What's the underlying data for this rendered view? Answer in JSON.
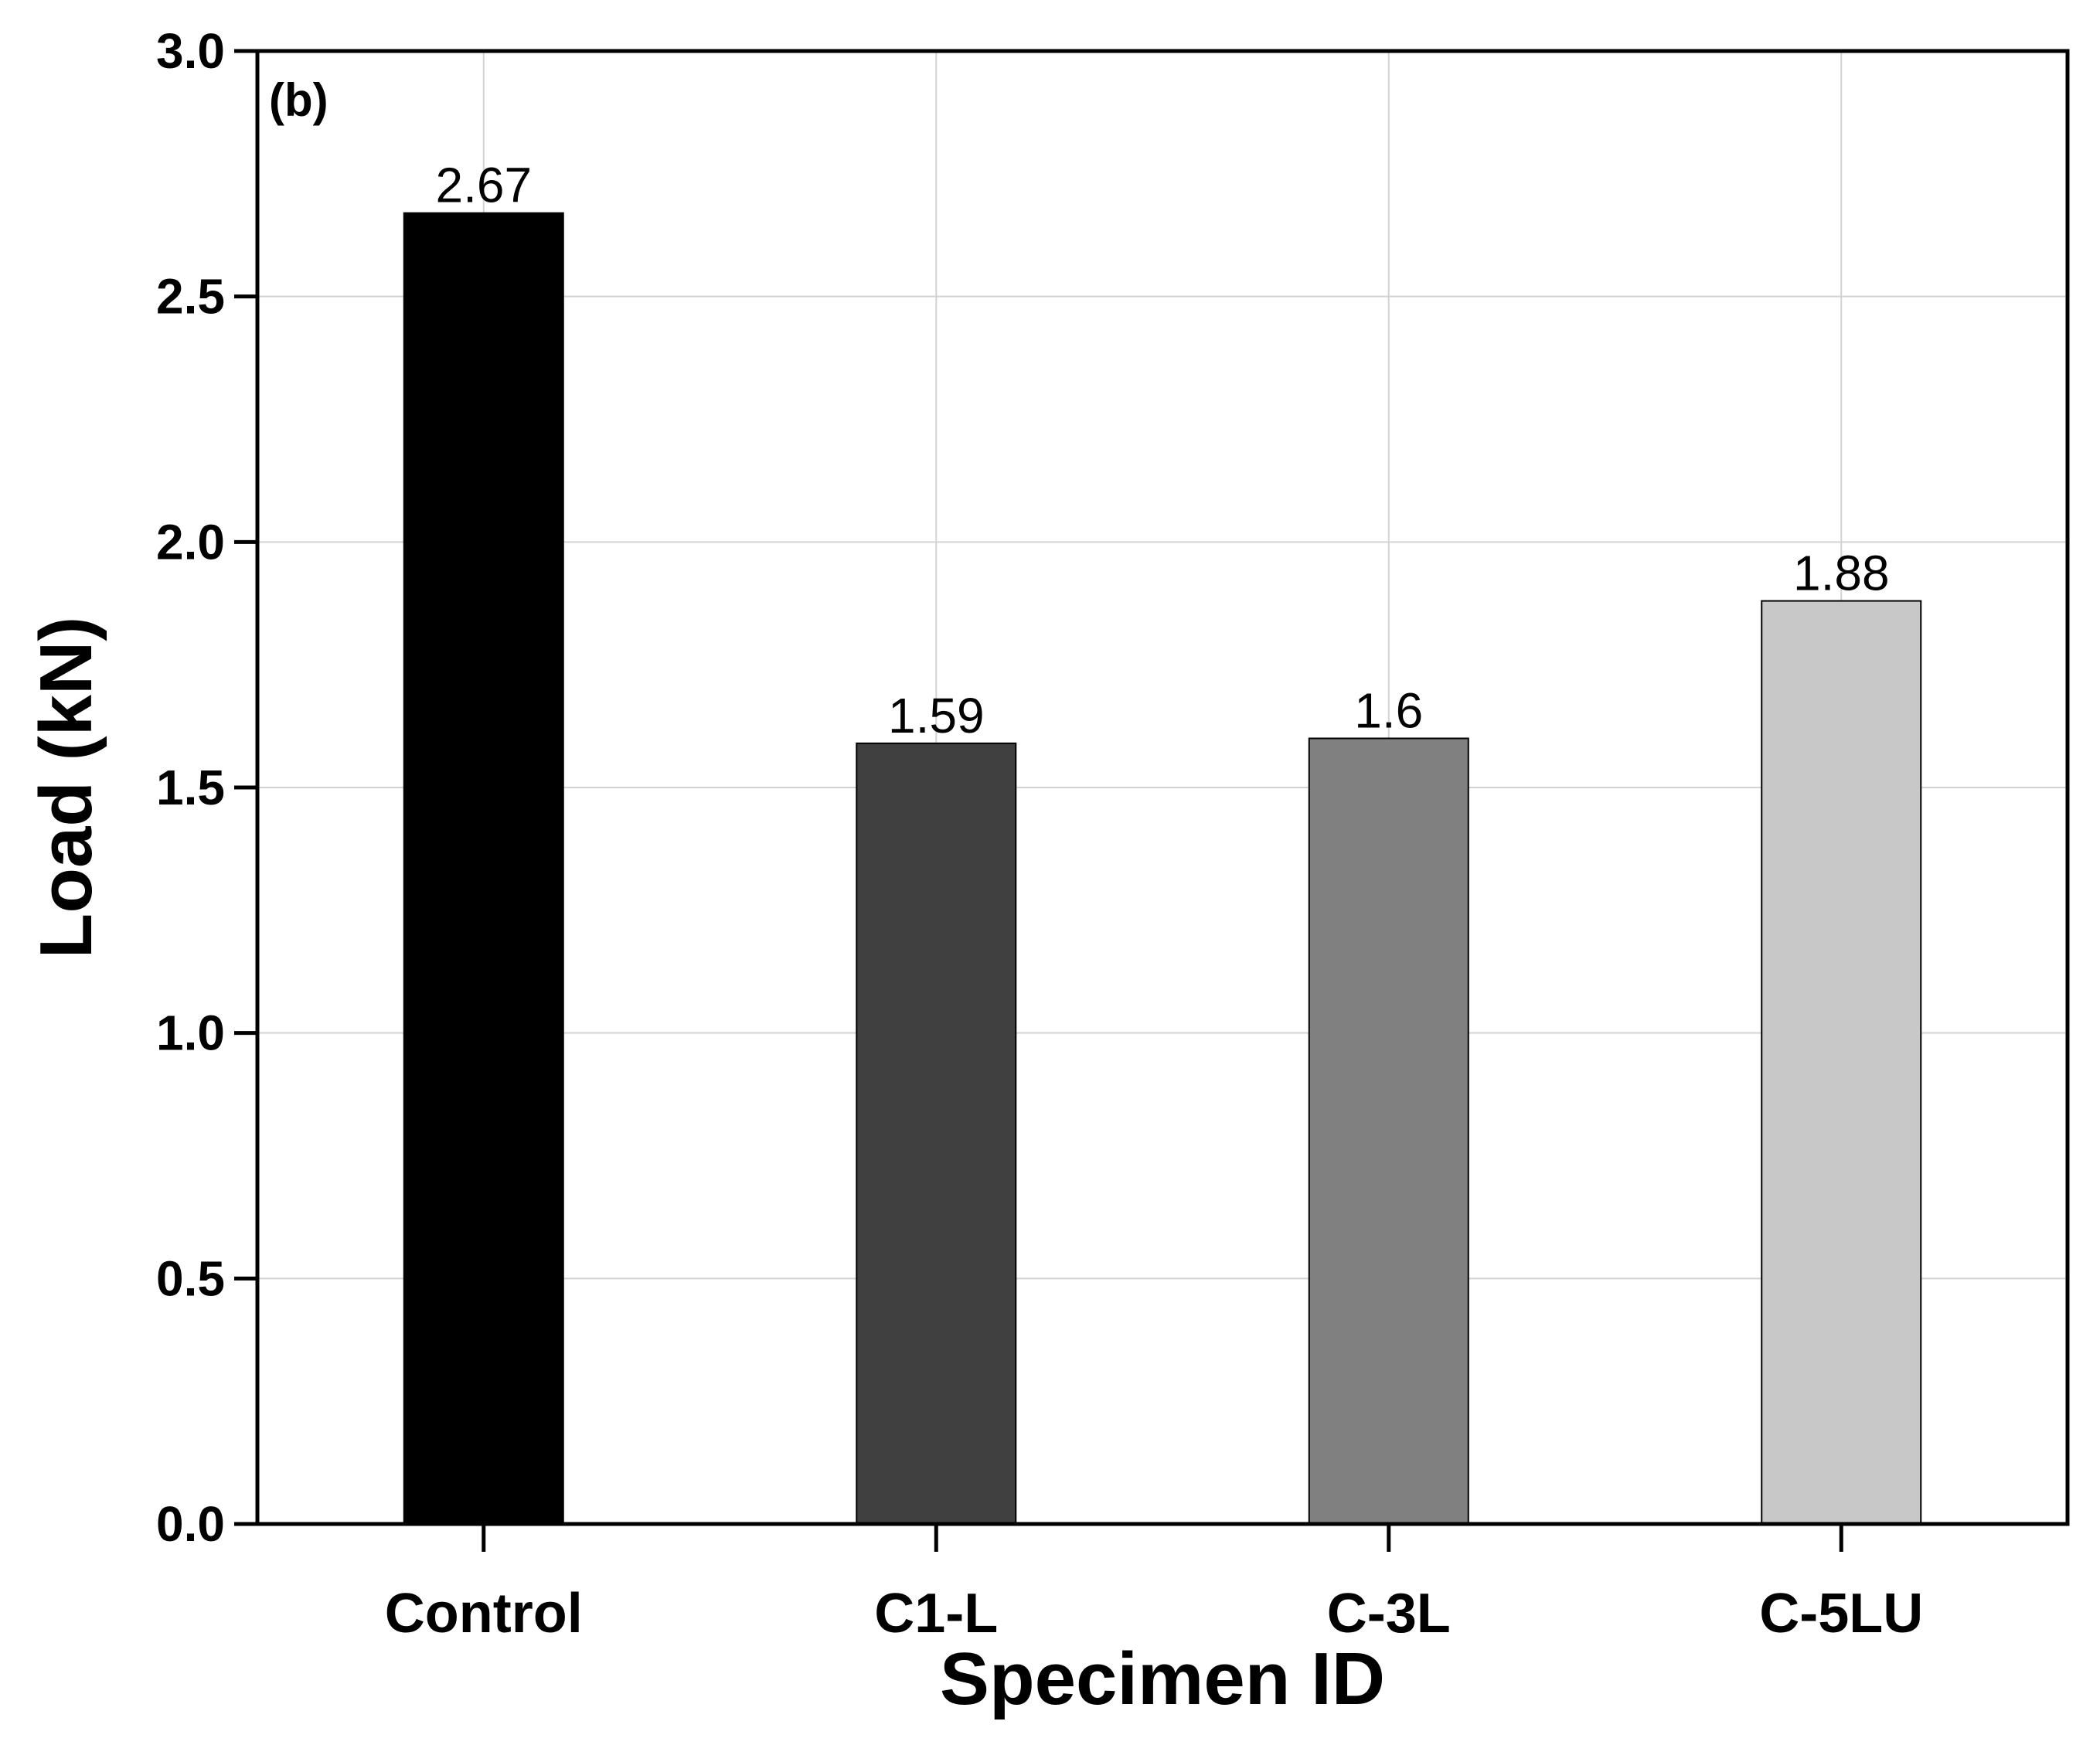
{
  "chart_data": {
    "type": "bar",
    "panel_label": "(b)",
    "title": "",
    "xlabel": "Specimen ID",
    "ylabel": "Load (kN)",
    "categories": [
      "Control",
      "C1-L",
      "C-3L",
      "C-5LU"
    ],
    "values": [
      2.67,
      1.59,
      1.6,
      1.88
    ],
    "value_labels": [
      "2.67",
      "1.59",
      "1.6",
      "1.88"
    ],
    "colors": [
      "#000000",
      "#404040",
      "#808080",
      "#c8c8c8"
    ],
    "ylim": [
      0,
      3.0
    ],
    "yticks": [
      0.0,
      0.5,
      1.0,
      1.5,
      2.0,
      2.5,
      3.0
    ],
    "ytick_labels": [
      "0.0",
      "0.5",
      "1.0",
      "1.5",
      "2.0",
      "2.5",
      "3.0"
    ],
    "grid": true
  }
}
